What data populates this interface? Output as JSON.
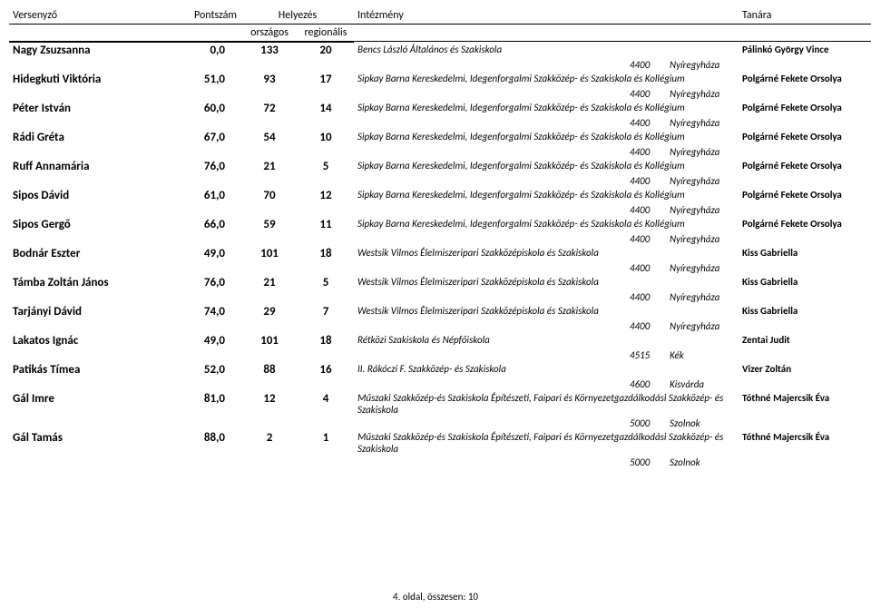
{
  "headers": {
    "competitor": "Versenyző",
    "score": "Pontszám",
    "placement": "Helyezés",
    "institution": "Intézmény",
    "teacher": "Tanára",
    "national": "országos",
    "regional": "regionális"
  },
  "footer": "4. oldal, összesen: 10",
  "rows": [
    {
      "name": "Nagy Zsuzsanna",
      "score": "0,0",
      "nat": "133",
      "reg": "20",
      "inst": "Bencs László Általános és Szakiskola",
      "zip": "4400",
      "city": "Nyíregyháza",
      "teacher": "Pálinkó György Vince"
    },
    {
      "name": "Hidegkuti Viktória",
      "score": "51,0",
      "nat": "93",
      "reg": "17",
      "inst": "Sipkay Barna Kereskedelmi, Idegenforgalmi Szakközép- és Szakiskola és Kollégium",
      "zip": "4400",
      "city": "Nyíregyháza",
      "teacher": "Polgárné Fekete Orsolya"
    },
    {
      "name": "Péter István",
      "score": "60,0",
      "nat": "72",
      "reg": "14",
      "inst": "Sipkay Barna Kereskedelmi, Idegenforgalmi Szakközép- és Szakiskola és Kollégium",
      "zip": "4400",
      "city": "Nyíregyháza",
      "teacher": "Polgárné Fekete Orsolya"
    },
    {
      "name": "Rádi Gréta",
      "score": "67,0",
      "nat": "54",
      "reg": "10",
      "inst": "Sipkay Barna Kereskedelmi, Idegenforgalmi Szakközép- és Szakiskola és Kollégium",
      "zip": "4400",
      "city": "Nyíregyháza",
      "teacher": "Polgárné Fekete Orsolya"
    },
    {
      "name": "Ruff Annamária",
      "score": "76,0",
      "nat": "21",
      "reg": "5",
      "inst": "Sipkay Barna Kereskedelmi, Idegenforgalmi Szakközép- és Szakiskola és Kollégium",
      "zip": "4400",
      "city": "Nyíregyháza",
      "teacher": "Polgárné Fekete Orsolya"
    },
    {
      "name": "Sipos Dávid",
      "score": "61,0",
      "nat": "70",
      "reg": "12",
      "inst": "Sipkay Barna Kereskedelmi, Idegenforgalmi Szakközép- és Szakiskola és Kollégium",
      "zip": "4400",
      "city": "Nyíregyháza",
      "teacher": "Polgárné Fekete Orsolya"
    },
    {
      "name": "Sipos Gergő",
      "score": "66,0",
      "nat": "59",
      "reg": "11",
      "inst": "Sipkay Barna Kereskedelmi, Idegenforgalmi Szakközép- és Szakiskola és Kollégium",
      "zip": "4400",
      "city": "Nyíregyháza",
      "teacher": "Polgárné Fekete Orsolya"
    },
    {
      "name": "Bodnár Eszter",
      "score": "49,0",
      "nat": "101",
      "reg": "18",
      "inst": "Westsik Vilmos Élelmiszeripari Szakközépiskola és Szakiskola",
      "zip": "4400",
      "city": "Nyíregyháza",
      "teacher": "Kiss Gabriella"
    },
    {
      "name": "Támba Zoltán János",
      "score": "76,0",
      "nat": "21",
      "reg": "5",
      "inst": "Westsik Vilmos Élelmiszeripari Szakközépiskola és Szakiskola",
      "zip": "4400",
      "city": "Nyíregyháza",
      "teacher": "Kiss Gabriella"
    },
    {
      "name": "Tarjányi Dávid",
      "score": "74,0",
      "nat": "29",
      "reg": "7",
      "inst": "Westsik Vilmos Élelmiszeripari Szakközépiskola és Szakiskola",
      "zip": "4400",
      "city": "Nyíregyháza",
      "teacher": "Kiss Gabriella"
    },
    {
      "name": "Lakatos Ignác",
      "score": "49,0",
      "nat": "101",
      "reg": "18",
      "inst": "Rétközi Szakiskola és Népfőiskola",
      "zip": "4515",
      "city": "Kék",
      "teacher": "Zentai Judit"
    },
    {
      "name": "Patikás Tímea",
      "score": "52,0",
      "nat": "88",
      "reg": "16",
      "inst": "II. Rákóczi F. Szakközép- és Szakiskola",
      "zip": "4600",
      "city": "Kisvárda",
      "teacher": "Vizer Zoltán"
    },
    {
      "name": "Gál Imre",
      "score": "81,0",
      "nat": "12",
      "reg": "4",
      "inst": "Műszaki Szakközép-és Szakiskola Építészeti, Faipari és Környezetgazdálkodási Szakközép- és Szakiskola",
      "zip": "5000",
      "city": "Szolnok",
      "teacher": "Tóthné Majercsik Éva"
    },
    {
      "name": "Gál Tamás",
      "score": "88,0",
      "nat": "2",
      "reg": "1",
      "inst": "Műszaki Szakközép-és Szakiskola Építészeti, Faipari és Környezetgazdálkodási Szakközép- és Szakiskola",
      "zip": "5000",
      "city": "Szolnok",
      "teacher": "Tóthné Majercsik Éva"
    }
  ]
}
